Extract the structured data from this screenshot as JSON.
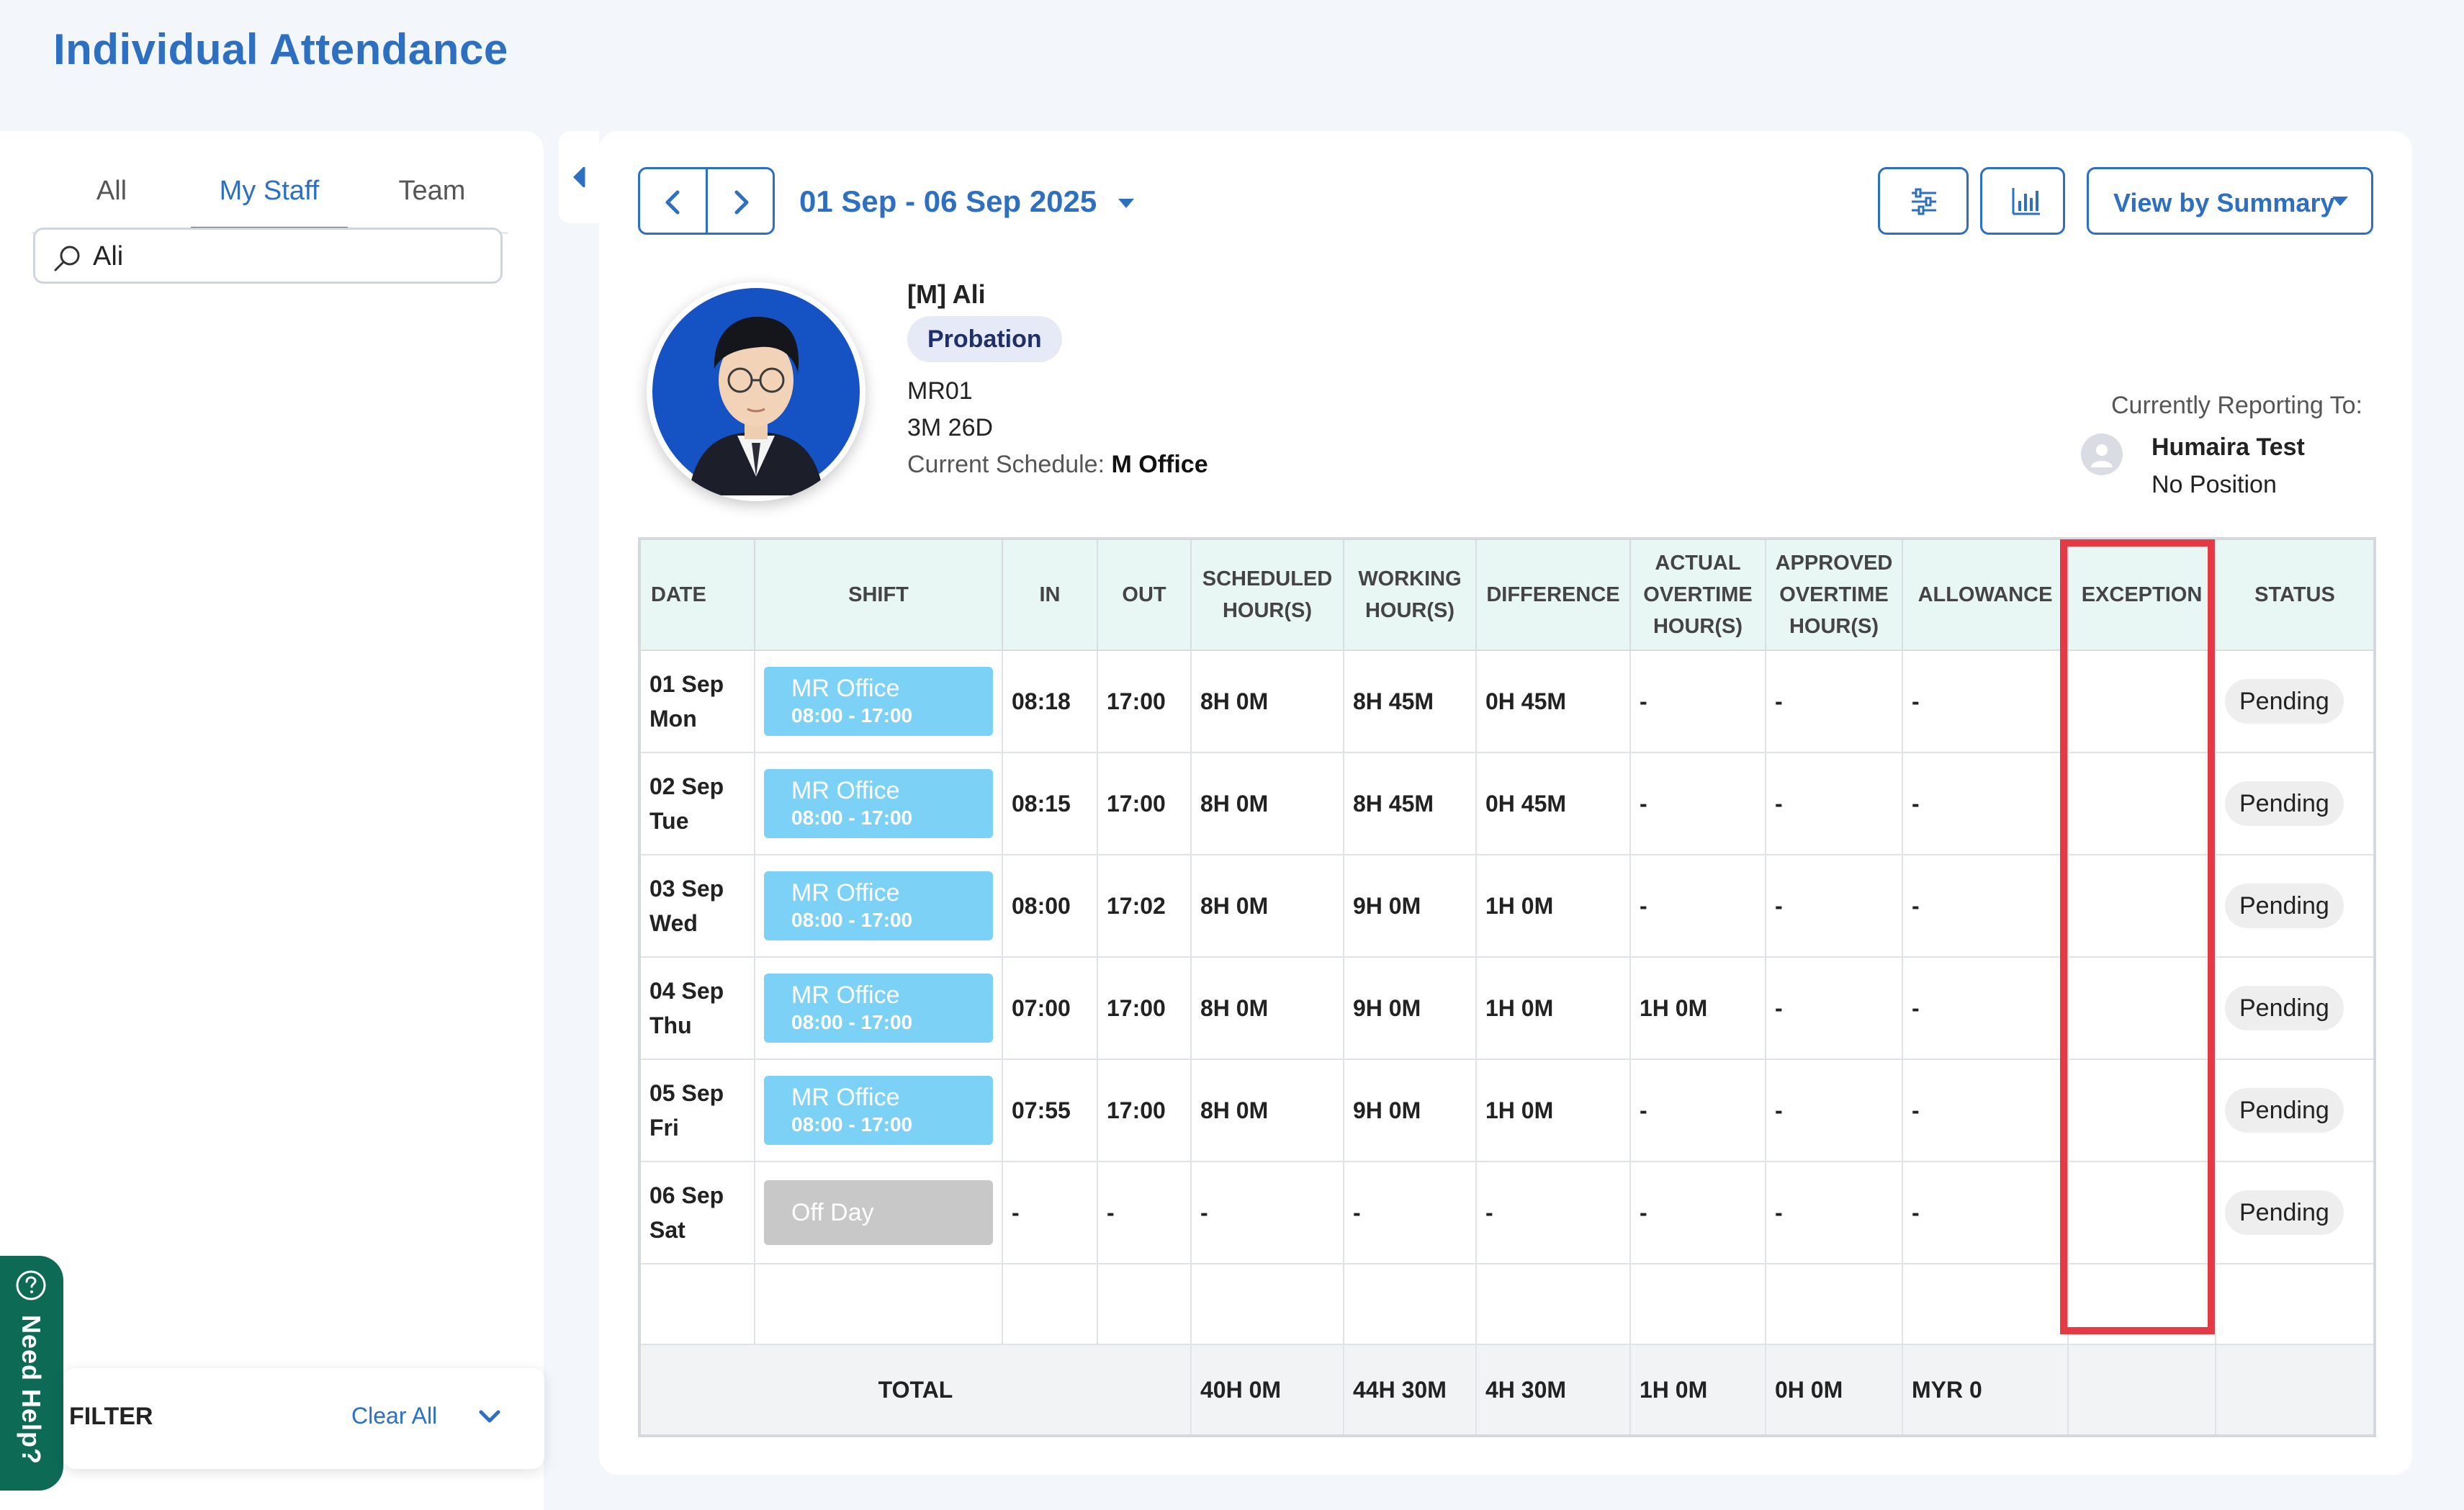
{
  "page": {
    "title": "Individual Attendance"
  },
  "left_panel": {
    "tabs": [
      {
        "label": "All",
        "active": false
      },
      {
        "label": "My Staff",
        "active": true
      },
      {
        "label": "Team",
        "active": false
      }
    ],
    "search": {
      "value": "Ali",
      "icon": "search-icon"
    },
    "filter": {
      "label": "FILTER",
      "clear_label": "Clear All"
    },
    "help": {
      "label": "Need Help?"
    }
  },
  "toolbar": {
    "date_range": "01 Sep - 06 Sep 2025",
    "view_select": "View by Summary",
    "icons": [
      "chevron-left-icon",
      "chevron-right-icon",
      "sliders-icon",
      "bar-chart-icon"
    ]
  },
  "employee": {
    "name": "[M] Ali",
    "status_badge": "Probation",
    "code": "MR01",
    "tenure": "3M 26D",
    "schedule_label": "Current Schedule:",
    "schedule_value": "M Office"
  },
  "reporting": {
    "title": "Currently Reporting To:",
    "name": "Humaira Test",
    "position": "No Position"
  },
  "table": {
    "headers": {
      "date": "DATE",
      "shift": "SHIFT",
      "in": "IN",
      "out": "OUT",
      "scheduled": [
        "SCHEDULED",
        "HOUR(S)"
      ],
      "working": [
        "WORKING",
        "HOUR(S)"
      ],
      "difference": "DIFFERENCE",
      "actual_ot": [
        "ACTUAL",
        "OVERTIME",
        "HOUR(S)"
      ],
      "approved_ot": [
        "APPROVED",
        "OVERTIME",
        "HOUR(S)"
      ],
      "allowance": "ALLOWANCE",
      "exception": "EXCEPTION",
      "status": "STATUS"
    },
    "rows": [
      {
        "date": "01 Sep",
        "day": "Mon",
        "shift_name": "MR Office",
        "shift_time": "08:00 - 17:00",
        "in": "08:18",
        "out": "17:00",
        "scheduled": "8H 0M",
        "working": "8H 45M",
        "difference": "0H 45M",
        "actual_ot": "-",
        "approved_ot": "-",
        "allowance": "-",
        "exception": "",
        "status": "Pending"
      },
      {
        "date": "02 Sep",
        "day": "Tue",
        "shift_name": "MR Office",
        "shift_time": "08:00 - 17:00",
        "in": "08:15",
        "out": "17:00",
        "scheduled": "8H 0M",
        "working": "8H 45M",
        "difference": "0H 45M",
        "actual_ot": "-",
        "approved_ot": "-",
        "allowance": "-",
        "exception": "",
        "status": "Pending"
      },
      {
        "date": "03 Sep",
        "day": "Wed",
        "shift_name": "MR Office",
        "shift_time": "08:00 - 17:00",
        "in": "08:00",
        "out": "17:02",
        "scheduled": "8H 0M",
        "working": "9H 0M",
        "difference": "1H 0M",
        "actual_ot": "-",
        "approved_ot": "-",
        "allowance": "-",
        "exception": "",
        "status": "Pending"
      },
      {
        "date": "04 Sep",
        "day": "Thu",
        "shift_name": "MR Office",
        "shift_time": "08:00 - 17:00",
        "in": "07:00",
        "out": "17:00",
        "scheduled": "8H 0M",
        "working": "9H 0M",
        "difference": "1H 0M",
        "actual_ot": "1H 0M",
        "approved_ot": "-",
        "allowance": "-",
        "exception": "",
        "status": "Pending"
      },
      {
        "date": "05 Sep",
        "day": "Fri",
        "shift_name": "MR Office",
        "shift_time": "08:00 - 17:00",
        "in": "07:55",
        "out": "17:00",
        "scheduled": "8H 0M",
        "working": "9H 0M",
        "difference": "1H 0M",
        "actual_ot": "-",
        "approved_ot": "-",
        "allowance": "-",
        "exception": "",
        "status": "Pending"
      },
      {
        "date": "06 Sep",
        "day": "Sat",
        "shift_name": "Off Day",
        "shift_time": "",
        "in": "-",
        "out": "-",
        "scheduled": "-",
        "working": "-",
        "difference": "-",
        "actual_ot": "-",
        "approved_ot": "-",
        "allowance": "-",
        "exception": "",
        "status": "Pending"
      }
    ],
    "total": {
      "label": "TOTAL",
      "scheduled": "40H 0M",
      "working": "44H 30M",
      "difference": "4H 30M",
      "actual_ot": "1H 0M",
      "approved_ot": "0H 0M",
      "allowance": "MYR 0"
    }
  },
  "colors": {
    "primary": "#2d6fc0",
    "shift_block": "#7bd2f6",
    "offday_block": "#c8c8c8",
    "table_header": "#e8f6f4",
    "highlight": "#e63946",
    "help_button": "#0c6a55",
    "badge_bg": "#e6e9f6"
  }
}
